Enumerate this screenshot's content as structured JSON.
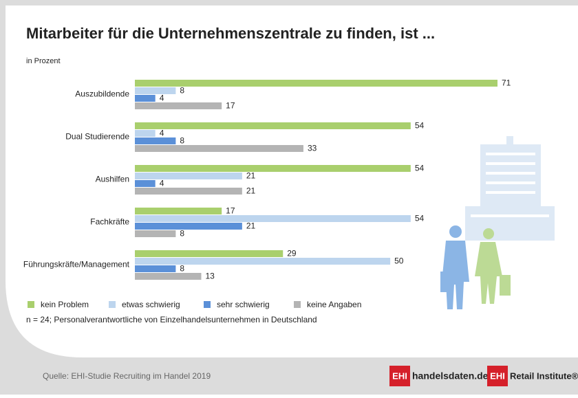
{
  "chart_data": {
    "type": "bar",
    "orientation": "horizontal",
    "title": "Mitarbeiter für die Unternehmenszentrale zu finden, ist ...",
    "subtitle": "in Prozent",
    "categories": [
      "Auszubildende",
      "Dual Studierende",
      "Aushilfen",
      "Fachkräfte",
      "Führungskräfte/Management"
    ],
    "series": [
      {
        "name": "kein Problem",
        "color": "#a9cf6d",
        "values": [
          71,
          54,
          54,
          17,
          29
        ]
      },
      {
        "name": "etwas schwierig",
        "color": "#bdd5ee",
        "values": [
          8,
          4,
          21,
          54,
          50
        ]
      },
      {
        "name": "sehr schwierig",
        "color": "#5b90d8",
        "values": [
          4,
          8,
          4,
          21,
          8
        ]
      },
      {
        "name": "keine Angaben",
        "color": "#b4b4b4",
        "values": [
          17,
          33,
          21,
          8,
          13
        ]
      }
    ],
    "note": "n = 24; Personalverantwortliche von Einzelhandelsunternehmen in Deutschland",
    "source": "Quelle: EHI-Studie Recruiting im Handel 2019",
    "logos": [
      {
        "badge": "EHI",
        "text": "handelsdaten.de"
      },
      {
        "badge": "EHI",
        "text": "Retail Institute®"
      }
    ]
  }
}
